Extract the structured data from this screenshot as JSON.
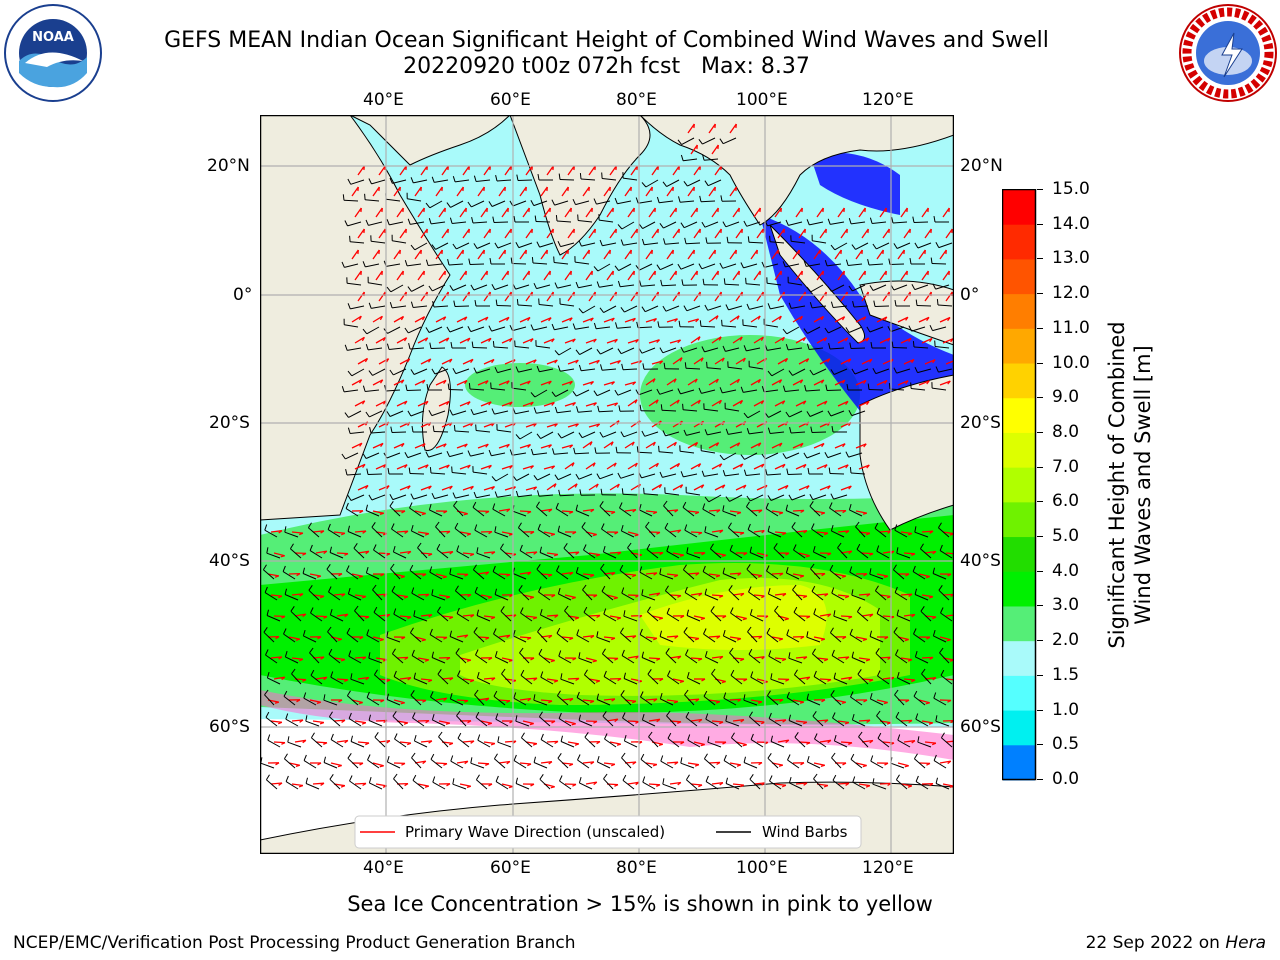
{
  "title": {
    "line1": "GEFS MEAN Indian Ocean Significant Height of Combined Wind Waves and Swell",
    "line2": "20220920 t00z 072h fcst   Max: 8.37"
  },
  "logos": {
    "left": {
      "name": "noaa-logo",
      "text": "NOAA",
      "ring_top": "NATIONAL OCEANIC AND ATMOSPHERIC ADMINISTRATION",
      "ring_bottom": "U.S. DEPARTMENT OF COMMERCE"
    },
    "right": {
      "name": "nws-logo",
      "ring": "NATIONAL WEATHER SERVICE"
    }
  },
  "map": {
    "lon_ticks": [
      "40°E",
      "60°E",
      "80°E",
      "100°E",
      "120°E"
    ],
    "lat_ticks": [
      "20°N",
      "0°",
      "20°S",
      "40°S",
      "60°S"
    ],
    "lon_range": [
      20,
      130
    ],
    "lat_range": [
      -74,
      28
    ],
    "ocean_color_dominant": "#a9fafa",
    "land_color": "#efeddf"
  },
  "legend": {
    "wave": {
      "label": "Primary Wave Direction (unscaled)",
      "color": "#ff0000"
    },
    "wind": {
      "label": "Wind Barbs",
      "color": "#000000"
    }
  },
  "colorbar": {
    "label_line1": "Significant Height of Combined",
    "label_line2": "Wind Waves and Swell [m]",
    "ticks": [
      "15.0",
      "14.0",
      "13.0",
      "12.0",
      "11.0",
      "10.0",
      "9.0",
      "8.0",
      "7.0",
      "6.0",
      "5.0",
      "4.0",
      "3.0",
      "2.0",
      "1.5",
      "1.0",
      "0.5",
      "0.0"
    ],
    "colors": [
      "#ff0000",
      "#ff2a00",
      "#ff5400",
      "#ff7e00",
      "#ffa800",
      "#ffd200",
      "#ffff00",
      "#ddff00",
      "#b0ff00",
      "#6ff200",
      "#22dd00",
      "#00f000",
      "#55ee77",
      "#a9fafa",
      "#55ffff",
      "#00f0f0",
      "#0080ff",
      "#0000ff"
    ]
  },
  "caption": "Sea Ice Concentration > 15% is shown in pink to yellow",
  "footer": {
    "left": "NCEP/EMC/Verification Post Processing Product Generation Branch",
    "date": "22 Sep 2022 on ",
    "machine": "Hera"
  }
}
